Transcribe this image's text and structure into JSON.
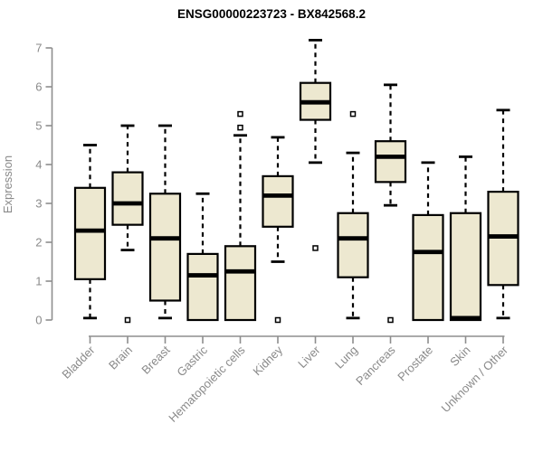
{
  "chart_data": {
    "type": "box",
    "title": "ENSG00000223723 - BX842568.2",
    "ylabel": "Expression",
    "xlabel": "",
    "ylim": [
      0,
      7
    ],
    "yticks": [
      0,
      1,
      2,
      3,
      4,
      5,
      6,
      7
    ],
    "grid": false,
    "legend_position": "none",
    "colors": {
      "box_fill": "#EDE8D0",
      "box_stroke": "#000000",
      "median": "#000000",
      "whisker": "#000000",
      "axis": "#8E8E8E",
      "tick_label": "#8A8A8A",
      "title": "#000000",
      "background": "#FFFFFF"
    },
    "categories": [
      "Bladder",
      "Brain",
      "Breast",
      "Gastric",
      "Hematopoietic cells",
      "Kidney",
      "Liver",
      "Lung",
      "Pancreas",
      "Prostate",
      "Skin",
      "Unknown / Other"
    ],
    "boxes": [
      {
        "category": "Bladder",
        "whisker_low": 0.05,
        "q1": 1.05,
        "median": 2.3,
        "q3": 3.4,
        "whisker_high": 4.5,
        "outliers": []
      },
      {
        "category": "Brain",
        "whisker_low": 1.8,
        "q1": 2.45,
        "median": 3.0,
        "q3": 3.8,
        "whisker_high": 5.0,
        "outliers": [
          0.0
        ]
      },
      {
        "category": "Breast",
        "whisker_low": 0.05,
        "q1": 0.5,
        "median": 2.1,
        "q3": 3.25,
        "whisker_high": 5.0,
        "outliers": []
      },
      {
        "category": "Gastric",
        "whisker_low": 0.0,
        "q1": 0.0,
        "median": 1.15,
        "q3": 1.7,
        "whisker_high": 3.25,
        "outliers": []
      },
      {
        "category": "Hematopoietic cells",
        "whisker_low": 0.0,
        "q1": 0.0,
        "median": 1.25,
        "q3": 1.9,
        "whisker_high": 4.75,
        "outliers": [
          4.95,
          5.3
        ]
      },
      {
        "category": "Kidney",
        "whisker_low": 1.5,
        "q1": 2.4,
        "median": 3.2,
        "q3": 3.7,
        "whisker_high": 4.7,
        "outliers": [
          0.0
        ]
      },
      {
        "category": "Liver",
        "whisker_low": 4.05,
        "q1": 5.15,
        "median": 5.6,
        "q3": 6.1,
        "whisker_high": 7.2,
        "outliers": [
          1.85
        ]
      },
      {
        "category": "Lung",
        "whisker_low": 0.05,
        "q1": 1.1,
        "median": 2.1,
        "q3": 2.75,
        "whisker_high": 4.3,
        "outliers": [
          5.3
        ]
      },
      {
        "category": "Pancreas",
        "whisker_low": 2.95,
        "q1": 3.55,
        "median": 4.2,
        "q3": 4.6,
        "whisker_high": 6.05,
        "outliers": [
          0.0
        ]
      },
      {
        "category": "Prostate",
        "whisker_low": 0.0,
        "q1": 0.0,
        "median": 1.75,
        "q3": 2.7,
        "whisker_high": 4.05,
        "outliers": []
      },
      {
        "category": "Skin",
        "whisker_low": 0.0,
        "q1": 0.0,
        "median": 0.05,
        "q3": 2.75,
        "whisker_high": 4.2,
        "outliers": []
      },
      {
        "category": "Unknown / Other",
        "whisker_low": 0.05,
        "q1": 0.9,
        "median": 2.15,
        "q3": 3.3,
        "whisker_high": 5.4,
        "outliers": []
      }
    ]
  }
}
